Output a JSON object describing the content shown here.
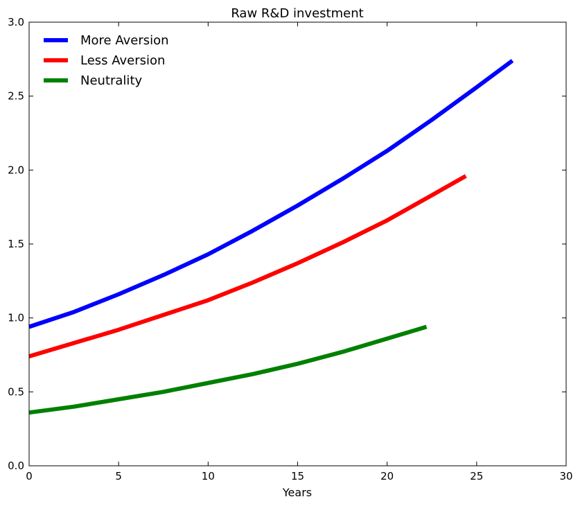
{
  "chart_data": {
    "type": "line",
    "title": "Raw R&D investment",
    "xlabel": "Years",
    "ylabel": "",
    "xlim": [
      0,
      30
    ],
    "ylim": [
      0,
      3.0
    ],
    "xticks": [
      "0",
      "5",
      "10",
      "15",
      "20",
      "25",
      "30"
    ],
    "yticks": [
      "0.0",
      "0.5",
      "1.0",
      "1.5",
      "2.0",
      "2.5",
      "3.0"
    ],
    "grid": false,
    "legend_position": "top-left",
    "series": [
      {
        "name": "More Aversion",
        "color": "#0000ff",
        "x": [
          0,
          2.5,
          5,
          7.5,
          10,
          12.5,
          15,
          17.5,
          20,
          22.5,
          25,
          27
        ],
        "y": [
          0.94,
          1.04,
          1.16,
          1.29,
          1.43,
          1.59,
          1.76,
          1.94,
          2.13,
          2.34,
          2.56,
          2.74
        ]
      },
      {
        "name": "Less Aversion",
        "color": "#ff0000",
        "x": [
          0,
          2.5,
          5,
          7.5,
          10,
          12.5,
          15,
          17.5,
          20,
          22.5,
          24.4
        ],
        "y": [
          0.74,
          0.83,
          0.92,
          1.02,
          1.12,
          1.24,
          1.37,
          1.51,
          1.66,
          1.83,
          1.96
        ]
      },
      {
        "name": "Neutrality",
        "color": "#008000",
        "x": [
          0,
          2.5,
          5,
          7.5,
          10,
          12.5,
          15,
          17.5,
          20,
          22.2
        ],
        "y": [
          0.36,
          0.4,
          0.45,
          0.5,
          0.56,
          0.62,
          0.69,
          0.77,
          0.86,
          0.94
        ]
      }
    ]
  }
}
